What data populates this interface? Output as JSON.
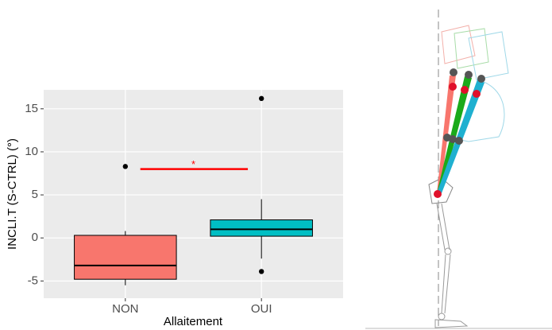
{
  "chart_data": {
    "type": "box",
    "x_label": "Allaitement",
    "y_label": "INCLI.T (S-CTRL) (°)",
    "categories": [
      "NON",
      "OUI"
    ],
    "boxes": [
      {
        "whislo": -5.5,
        "q1": -4.8,
        "median": -3.2,
        "q3": 0.3,
        "whishi": 0.8,
        "fliers": [
          8.3
        ],
        "color": "#f8766d"
      },
      {
        "whislo": -2.4,
        "q1": 0.2,
        "median": 1.0,
        "q3": 2.1,
        "whishi": 4.5,
        "fliers": [
          16.2,
          -3.9
        ],
        "color": "#00bfc4"
      }
    ],
    "significance": {
      "label": "*",
      "y": 8.0,
      "color": "#ff0000"
    },
    "ylim": [
      -7.0,
      17.2
    ],
    "yticks": [
      -5,
      0,
      5,
      10,
      15
    ],
    "grid": true
  }
}
